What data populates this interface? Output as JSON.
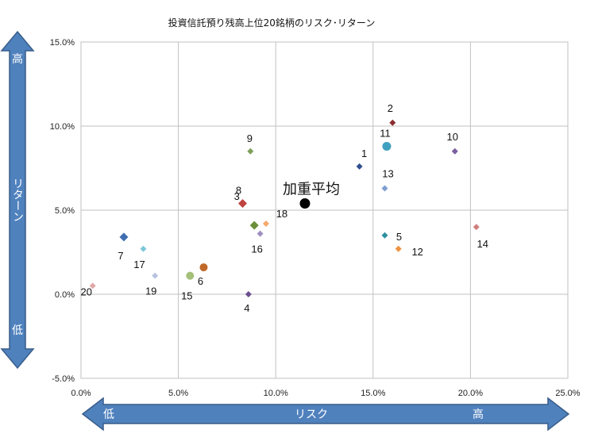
{
  "chart_data": {
    "type": "scatter",
    "title": "投資信託預り残高上位20銘柄のリスク･リターン",
    "xlabel": "リスク",
    "ylabel": "リターン",
    "x_low_label": "低",
    "x_high_label": "高",
    "y_low_label": "低",
    "y_high_label": "高",
    "xlim": [
      0,
      25
    ],
    "ylim": [
      -5,
      15
    ],
    "x_ticks": [
      0,
      5,
      10,
      15,
      20,
      25
    ],
    "y_ticks": [
      -5,
      0,
      5,
      10,
      15
    ],
    "x_tick_labels": [
      "0.0%",
      "5.0%",
      "10.0%",
      "15.0%",
      "20.0%",
      "25.0%"
    ],
    "y_tick_labels": [
      "-5.0%",
      "0.0%",
      "5.0%",
      "10.0%",
      "15.0%"
    ],
    "grid": true,
    "points": [
      {
        "label": "1",
        "x": 14.3,
        "y": 7.6,
        "color": "#2f4f8f",
        "shape": "diamond"
      },
      {
        "label": "2",
        "x": 16.0,
        "y": 10.2,
        "color": "#8b2e2e",
        "shape": "diamond"
      },
      {
        "label": "3",
        "x": 8.9,
        "y": 4.1,
        "color": "#6a8f3a",
        "shape": "diamond"
      },
      {
        "label": "4",
        "x": 8.6,
        "y": 0.0,
        "color": "#6b4f8f",
        "shape": "diamond"
      },
      {
        "label": "5",
        "x": 15.6,
        "y": 3.5,
        "color": "#2f8f9f",
        "shape": "diamond"
      },
      {
        "label": "6",
        "x": 6.3,
        "y": 1.6,
        "color": "#c0692a",
        "shape": "circle"
      },
      {
        "label": "7",
        "x": 2.2,
        "y": 3.4,
        "color": "#3f6fb0",
        "shape": "diamond"
      },
      {
        "label": "8",
        "x": 8.3,
        "y": 5.4,
        "color": "#c0433f",
        "shape": "diamond"
      },
      {
        "label": "9",
        "x": 8.7,
        "y": 8.5,
        "color": "#7ea05a",
        "shape": "diamond"
      },
      {
        "label": "10",
        "x": 19.2,
        "y": 8.5,
        "color": "#7a5f9f",
        "shape": "diamond"
      },
      {
        "label": "11",
        "x": 15.7,
        "y": 8.8,
        "color": "#3fa0c0",
        "shape": "circle"
      },
      {
        "label": "12",
        "x": 16.3,
        "y": 2.7,
        "color": "#f0923f",
        "shape": "diamond"
      },
      {
        "label": "13",
        "x": 15.6,
        "y": 6.3,
        "color": "#7f9fd0",
        "shape": "diamond"
      },
      {
        "label": "14",
        "x": 20.3,
        "y": 4.0,
        "color": "#d07f7f",
        "shape": "diamond"
      },
      {
        "label": "15",
        "x": 5.6,
        "y": 1.1,
        "color": "#a5c07a",
        "shape": "circle"
      },
      {
        "label": "16",
        "x": 9.2,
        "y": 3.6,
        "color": "#9f8fc0",
        "shape": "diamond"
      },
      {
        "label": "17",
        "x": 3.2,
        "y": 2.7,
        "color": "#7fc8d8",
        "shape": "diamond"
      },
      {
        "label": "18",
        "x": 9.5,
        "y": 4.2,
        "color": "#f5a86a",
        "shape": "diamond"
      },
      {
        "label": "19",
        "x": 3.8,
        "y": 1.1,
        "color": "#b8c4e0",
        "shape": "diamond"
      },
      {
        "label": "20",
        "x": 0.6,
        "y": 0.5,
        "color": "#e0a8a8",
        "shape": "diamond"
      }
    ],
    "average": {
      "label": "加重平均",
      "x": 11.5,
      "y": 5.4,
      "color": "#000000"
    }
  },
  "colors": {
    "arrow_fill": "#4f81bd",
    "arrow_stroke": "#385d8a",
    "grid": "#c0c0c0"
  }
}
